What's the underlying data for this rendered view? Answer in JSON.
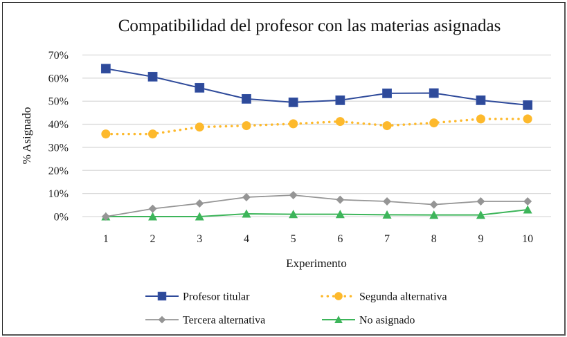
{
  "chart_data": {
    "type": "line",
    "title": "Compatibilidad del profesor con las materias asignadas",
    "xlabel": "Experimento",
    "ylabel": "% Asignado",
    "categories": [
      "1",
      "2",
      "3",
      "4",
      "5",
      "6",
      "7",
      "8",
      "9",
      "10"
    ],
    "ylim": [
      0,
      70
    ],
    "yticks": [
      0,
      10,
      20,
      30,
      40,
      50,
      60,
      70
    ],
    "ytick_labels": [
      "0%",
      "10%",
      "20%",
      "30%",
      "40%",
      "50%",
      "60%",
      "70%"
    ],
    "grid": true,
    "legend_position": "bottom",
    "series": [
      {
        "name": "Profesor titular",
        "color": "#2E4A9A",
        "marker": "square",
        "line_style": "solid",
        "values": [
          64.1,
          60.6,
          55.8,
          51.0,
          49.5,
          50.4,
          53.4,
          53.5,
          50.4,
          48.3
        ]
      },
      {
        "name": "Segunda alternativa",
        "color": "#FDB92C",
        "marker": "circle",
        "line_style": "dotted",
        "values": [
          35.8,
          35.8,
          38.8,
          39.4,
          40.2,
          41.2,
          39.4,
          40.6,
          42.3,
          42.3
        ]
      },
      {
        "name": "Tercera alternativa",
        "color": "#959595",
        "marker": "diamond",
        "line_style": "solid",
        "values": [
          0.0,
          3.4,
          5.7,
          8.4,
          9.3,
          7.3,
          6.6,
          5.2,
          6.6,
          6.6
        ]
      },
      {
        "name": "No asignado",
        "color": "#3DB55A",
        "marker": "triangle",
        "line_style": "solid",
        "values": [
          0.0,
          0.0,
          0.0,
          1.2,
          1.0,
          1.0,
          0.8,
          0.7,
          0.7,
          3.0
        ]
      }
    ]
  }
}
